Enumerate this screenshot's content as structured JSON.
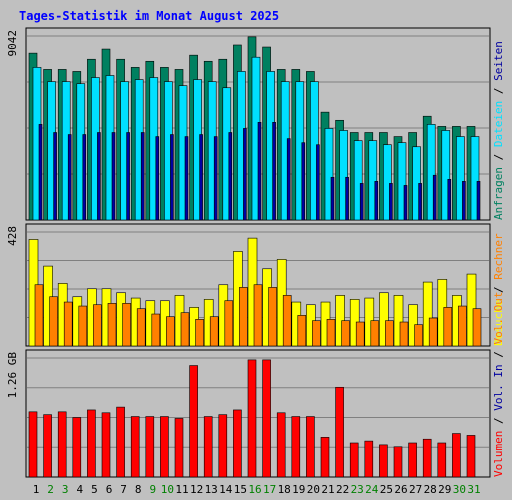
{
  "chart_data": {
    "type": "bar",
    "title": "Tages-Statistik im Monat August 2025",
    "days": [
      "1",
      "2",
      "3",
      "4",
      "5",
      "6",
      "7",
      "8",
      "9",
      "10",
      "11",
      "12",
      "13",
      "14",
      "15",
      "16",
      "17",
      "18",
      "19",
      "20",
      "21",
      "22",
      "23",
      "24",
      "25",
      "26",
      "27",
      "28",
      "29",
      "30",
      "31"
    ],
    "weekend_days": [
      2,
      3,
      9,
      10,
      16,
      17,
      23,
      24,
      30,
      31
    ],
    "colors": {
      "background": "#c0c0c0",
      "title": "#0000ff",
      "anfragen": "#008060",
      "dateien": "#00e0ff",
      "seiten": "#0000a0",
      "besuche": "#ffff00",
      "rechner": "#ff8000",
      "volumen": "#ff0000",
      "weekend": "#008000",
      "weekday": "#000000"
    },
    "panels": [
      {
        "id": "requests",
        "ymax_label": "9042",
        "ymax": 9042,
        "legend": [
          {
            "text": "Anfragen",
            "color": "#008060"
          },
          {
            "text": " / ",
            "color": "#000000"
          },
          {
            "text": "Dateien",
            "color": "#00e0ff"
          },
          {
            "text": " / ",
            "color": "#000000"
          },
          {
            "text": "Seiten",
            "color": "#0000a0"
          }
        ],
        "series": [
          {
            "name": "Anfragen",
            "color": "#008060",
            "values": [
              8200,
              7400,
              7400,
              7300,
              7900,
              8400,
              7900,
              7500,
              7800,
              7500,
              7400,
              8100,
              7800,
              7900,
              8600,
              9000,
              8500,
              7400,
              7400,
              7300,
              5300,
              4900,
              4300,
              4300,
              4300,
              4100,
              4300,
              5100,
              4600,
              4600,
              4600
            ]
          },
          {
            "name": "Dateien",
            "color": "#00e0ff",
            "values": [
              7500,
              6800,
              6800,
              6700,
              7000,
              7100,
              6800,
              6900,
              7000,
              6800,
              6600,
              6900,
              6800,
              6500,
              7300,
              8000,
              7300,
              6800,
              6800,
              6800,
              4500,
              4400,
              3900,
              3900,
              3700,
              3800,
              3600,
              4700,
              4400,
              4100,
              4100
            ]
          },
          {
            "name": "Seiten",
            "color": "#0000a0",
            "values": [
              4700,
              4300,
              4200,
              4200,
              4300,
              4300,
              4300,
              4300,
              4100,
              4200,
              4100,
              4200,
              4100,
              4300,
              4500,
              4800,
              4800,
              4000,
              3800,
              3700,
              2100,
              2100,
              1800,
              1900,
              1800,
              1700,
              1800,
              2200,
              2000,
              1900,
              1900
            ]
          }
        ]
      },
      {
        "id": "visits",
        "ymax_label": "428",
        "ymax": 428,
        "legend": [
          {
            "text": "Besuche",
            "color": "#ffff00"
          },
          {
            "text": " / ",
            "color": "#000000"
          },
          {
            "text": "Rechner",
            "color": "#ff8000"
          }
        ],
        "series": [
          {
            "name": "Besuche",
            "color": "#ffff00",
            "values": [
              400,
              300,
              235,
              185,
              215,
              215,
              200,
              180,
              170,
              170,
              190,
              145,
              175,
              230,
              355,
              405,
              290,
              325,
              165,
              155,
              165,
              190,
              175,
              180,
              200,
              190,
              155,
              240,
              250,
              190,
              270
            ]
          },
          {
            "name": "Rechner",
            "color": "#ff8000",
            "values": [
              230,
              185,
              165,
              150,
              155,
              160,
              160,
              140,
              120,
              110,
              125,
              100,
              110,
              170,
              220,
              230,
              220,
              190,
              115,
              95,
              100,
              95,
              90,
              95,
              95,
              90,
              80,
              105,
              145,
              150,
              140
            ]
          }
        ]
      },
      {
        "id": "volume",
        "ymax_label": "1.26 GB",
        "ymax": 1.26,
        "legend": [
          {
            "text": "Volumen",
            "color": "#ff0000"
          },
          {
            "text": " / ",
            "color": "#000000"
          },
          {
            "text": "Vol. In",
            "color": "#0000a0"
          },
          {
            "text": " / ",
            "color": "#000000"
          },
          {
            "text": "Vol. Out",
            "color": "#ff8000"
          }
        ],
        "series": [
          {
            "name": "Volumen",
            "color": "#ff0000",
            "values": [
              0.69,
              0.66,
              0.69,
              0.63,
              0.71,
              0.68,
              0.74,
              0.64,
              0.64,
              0.64,
              0.62,
              1.18,
              0.64,
              0.66,
              0.71,
              1.24,
              1.24,
              0.68,
              0.64,
              0.64,
              0.42,
              0.95,
              0.36,
              0.38,
              0.34,
              0.32,
              0.36,
              0.4,
              0.36,
              0.46,
              0.44
            ]
          }
        ]
      }
    ]
  }
}
